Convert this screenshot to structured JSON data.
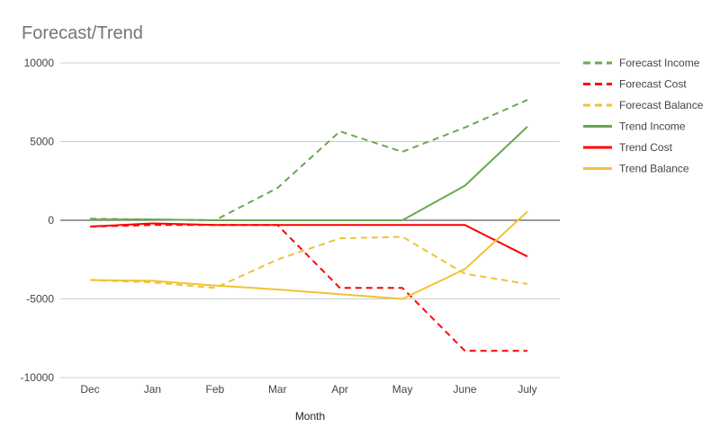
{
  "chart_data": {
    "type": "line",
    "title": "Forecast/Trend",
    "xlabel": "Month",
    "ylabel": "",
    "categories": [
      "Dec",
      "Jan",
      "Feb",
      "Mar",
      "Apr",
      "May",
      "June",
      "July"
    ],
    "ylim": [
      -10000,
      10000
    ],
    "yticks": [
      10000,
      5000,
      0,
      -5000,
      -10000
    ],
    "grid": true,
    "legend_position": "right",
    "series": [
      {
        "name": "Forecast Income",
        "color": "#6aa84f",
        "style": "dashed",
        "values": [
          100,
          50,
          0,
          2050,
          5650,
          4350,
          5900,
          7650
        ]
      },
      {
        "name": "Forecast Cost",
        "color": "#ff0000",
        "style": "dashed",
        "values": [
          -400,
          -300,
          -300,
          -300,
          -4300,
          -4300,
          -8300,
          -8300
        ]
      },
      {
        "name": "Forecast Balance",
        "color": "#f1c232",
        "style": "dashed",
        "values": [
          -3800,
          -3950,
          -4300,
          -2500,
          -1150,
          -1050,
          -3400,
          -4050
        ]
      },
      {
        "name": "Trend Income",
        "color": "#6aa84f",
        "style": "solid",
        "values": [
          50,
          50,
          0,
          0,
          0,
          0,
          2200,
          5950
        ]
      },
      {
        "name": "Trend Cost",
        "color": "#ff0000",
        "style": "solid",
        "values": [
          -400,
          -200,
          -300,
          -300,
          -300,
          -300,
          -300,
          -2300
        ]
      },
      {
        "name": "Trend Balance",
        "color": "#f1c232",
        "style": "solid",
        "values": [
          -3800,
          -3850,
          -4150,
          -4400,
          -4700,
          -5000,
          -3100,
          550
        ]
      }
    ]
  }
}
